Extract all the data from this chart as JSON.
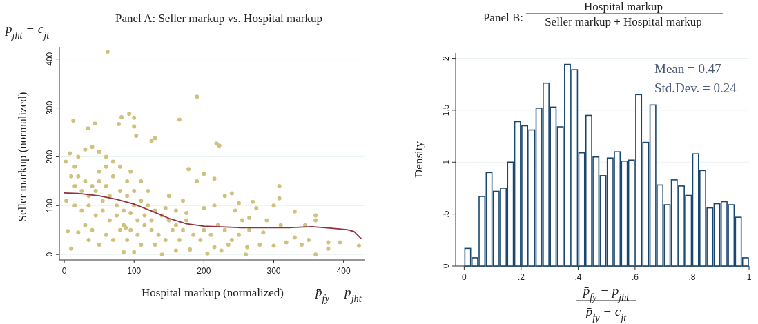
{
  "chart_data": [
    {
      "type": "scatter",
      "title": "Panel A: Seller markup vs. Hospital markup",
      "xlabel": "Hospital markup (normalized)",
      "ylabel": "Seller markup (normalized)",
      "annotations": [
        "p$_{jht}$ − c$_{jt}$",
        "p̄$_{fy}$ − p$_{jht}$"
      ],
      "xlim": [
        -7,
        430
      ],
      "ylim": [
        -11,
        425
      ],
      "xticks": [
        0,
        100,
        200,
        300,
        400
      ],
      "yticks": [
        0,
        100,
        200,
        300,
        400
      ],
      "grid": "y",
      "series": [
        {
          "type": "scatter",
          "marker": "circle",
          "color": "#cfc27e",
          "x": [
            62,
            190,
            165,
            218,
            222,
            93,
            100,
            82,
            78,
            44,
            13,
            130,
            125,
            34,
            100,
            103,
            308,
            308,
            8,
            2,
            3,
            5,
            10,
            20,
            35,
            50,
            85,
            100,
            140,
            160,
            180,
            205,
            225,
            260,
            262,
            280,
            300,
            318,
            340,
            360,
            378,
            378,
            395,
            422,
            360,
            360,
            345,
            330,
            300,
            290,
            275,
            270,
            250,
            240,
            230,
            215,
            200,
            190,
            178,
            170,
            175,
            160,
            150,
            145,
            120,
            110,
            95,
            80,
            70,
            60,
            50,
            40,
            30,
            20,
            15,
            10,
            20,
            30,
            40,
            50,
            60,
            70,
            80,
            90,
            100,
            110,
            120,
            130,
            140,
            150,
            160,
            170,
            185,
            195,
            210,
            220,
            230,
            240,
            250,
            255,
            265,
            285,
            15,
            25,
            35,
            45,
            55,
            65,
            75,
            85,
            95,
            105,
            115,
            125,
            135,
            145,
            155,
            165,
            25,
            35,
            45,
            55,
            65,
            75,
            85,
            95,
            105,
            115,
            125,
            15,
            30,
            40,
            60,
            70,
            80,
            90,
            110,
            130,
            50,
            60,
            90,
            100,
            88,
            175,
            200,
            215,
            245,
            200,
            235,
            215,
            330,
            350,
            310,
            265
          ],
          "values": [
            415,
            323,
            276,
            227,
            223,
            288,
            280,
            281,
            267,
            268,
            274,
            238,
            232,
            258,
            262,
            243,
            140,
            115,
            207,
            190,
            110,
            48,
            12,
            45,
            30,
            20,
            5,
            5,
            0,
            8,
            10,
            2,
            8,
            0,
            15,
            20,
            18,
            25,
            20,
            0,
            12,
            25,
            25,
            18,
            80,
            70,
            60,
            88,
            100,
            70,
            95,
            108,
            105,
            125,
            120,
            155,
            165,
            150,
            175,
            110,
            85,
            90,
            120,
            95,
            130,
            150,
            170,
            180,
            190,
            200,
            210,
            220,
            215,
            200,
            180,
            160,
            160,
            150,
            140,
            150,
            140,
            160,
            130,
            120,
            130,
            110,
            100,
            90,
            80,
            70,
            60,
            50,
            40,
            30,
            40,
            60,
            50,
            30,
            40,
            70,
            50,
            45,
            100,
            90,
            100,
            80,
            90,
            70,
            80,
            60,
            50,
            40,
            60,
            50,
            40,
            30,
            50,
            30,
            130,
            120,
            130,
            110,
            120,
            100,
            90,
            85,
            70,
            80,
            70,
            140,
            60,
            50,
            40,
            30,
            50,
            30,
            20,
            20,
            170,
            180,
            150,
            100,
            55,
            70,
            95,
            100,
            90,
            50,
            20,
            15,
            35,
            30,
            60,
            75
          ]
        },
        {
          "type": "line",
          "color": "#93303d",
          "x": [
            0,
            20,
            50,
            75,
            100,
            125,
            150,
            175,
            200,
            250,
            300,
            325,
            355,
            380,
            405,
            415,
            425
          ],
          "values": [
            126,
            125,
            120,
            113,
            103,
            89,
            74,
            63,
            58,
            55,
            55,
            55,
            57,
            54,
            51,
            47,
            33
          ]
        }
      ]
    },
    {
      "type": "histogram",
      "title": "Panel B:",
      "ylabel": "Density",
      "xlabel": "p̄$_{fy}$ − p$_{jht}$",
      "annotations": [
        "Hospital markup",
        "Seller markup + Hospital markup",
        "Mean = 0.47",
        "Std.Dev. = 0.24",
        "p̄$_{fy}$ − c$_{jt}$"
      ],
      "color": "#1a476f",
      "grid": "y",
      "bins": [
        0,
        0.025,
        0.05,
        0.075,
        0.1,
        0.125,
        0.15,
        0.175,
        0.2,
        0.225,
        0.25,
        0.275,
        0.3,
        0.325,
        0.35,
        0.375,
        0.4,
        0.425,
        0.45,
        0.475,
        0.5,
        0.525,
        0.55,
        0.575,
        0.6,
        0.625,
        0.65,
        0.675,
        0.7,
        0.725,
        0.75,
        0.775,
        0.8,
        0.825,
        0.85,
        0.875,
        0.9,
        0.925,
        0.95,
        0.975,
        1
      ],
      "values": [
        0.17,
        0.08,
        0.67,
        0.9,
        0.72,
        0.75,
        1.0,
        1.39,
        1.35,
        1.31,
        1.52,
        1.76,
        1.53,
        1.34,
        1.94,
        1.89,
        1.09,
        1.45,
        1.05,
        0.87,
        1.04,
        1.1,
        1.01,
        1.02,
        1.65,
        1.19,
        1.55,
        0.78,
        0.59,
        0.83,
        0.77,
        0.68,
        1.08,
        0.92,
        0.56,
        0.6,
        0.62,
        0.59,
        0.47,
        0.08
      ],
      "xlim": [
        -0.03,
        1.0
      ],
      "ylim": [
        0,
        2.05
      ],
      "xticks": [
        0,
        {
          "value": 0.2,
          "label": ".2"
        },
        {
          "value": 0.4,
          "label": ".4"
        },
        {
          "value": 0.6,
          "label": ".6"
        },
        {
          "value": 0.8,
          "label": ".8"
        },
        1
      ],
      "yticks": [
        0,
        {
          "value": 0.5,
          "label": ".5"
        },
        1,
        1.5,
        2
      ]
    }
  ]
}
